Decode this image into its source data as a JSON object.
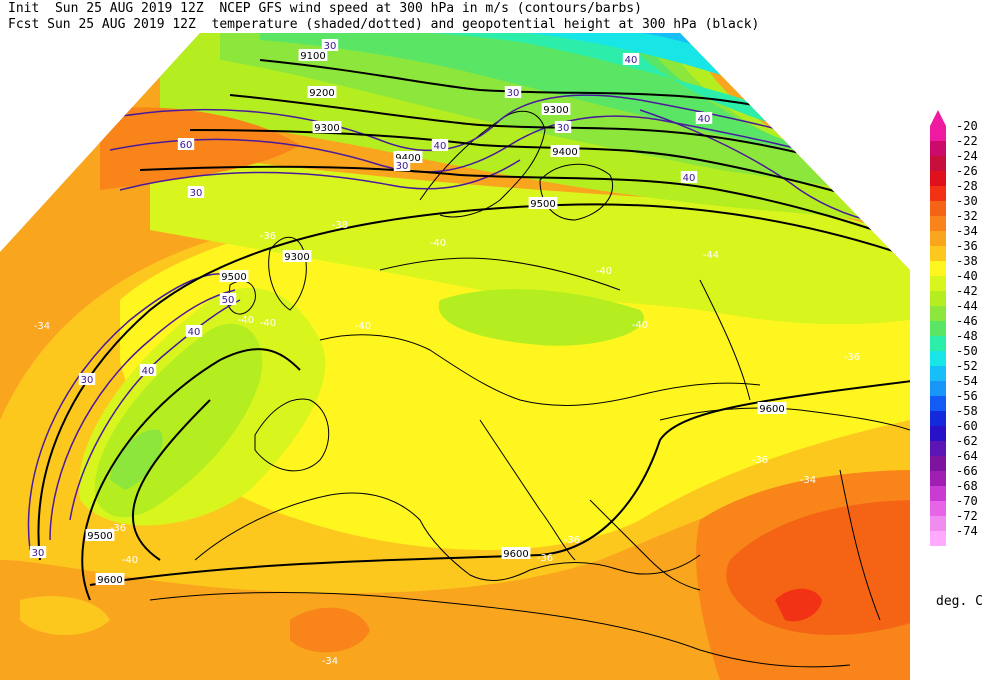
{
  "header": {
    "line1": "Init  Sun 25 AUG 2019 12Z  NCEP GFS wind speed at 300 hPa in m/s (contours/barbs)",
    "line2": "Fcst Sun 25 AUG 2019 12Z  temperature (shaded/dotted) and geopotential height at 300 hPa (black)"
  },
  "colorbar": {
    "unit": "deg. C",
    "levels": [
      {
        "label": "-20",
        "color": "#ee1aa0"
      },
      {
        "label": "-22",
        "color": "#cc0a6a"
      },
      {
        "label": "-24",
        "color": "#c80f3c"
      },
      {
        "label": "-26",
        "color": "#e0101e"
      },
      {
        "label": "-28",
        "color": "#f23214"
      },
      {
        "label": "-30",
        "color": "#f46414"
      },
      {
        "label": "-32",
        "color": "#f8841a"
      },
      {
        "label": "-34",
        "color": "#f9a51e"
      },
      {
        "label": "-36",
        "color": "#fdc81e"
      },
      {
        "label": "-38",
        "color": "#fef61e"
      },
      {
        "label": "-40",
        "color": "#d9f51e"
      },
      {
        "label": "-42",
        "color": "#b5ee20"
      },
      {
        "label": "-44",
        "color": "#8ce63c"
      },
      {
        "label": "-46",
        "color": "#5ae664"
      },
      {
        "label": "-48",
        "color": "#2ceeaa"
      },
      {
        "label": "-50",
        "color": "#18e6e6"
      },
      {
        "label": "-52",
        "color": "#18bef8"
      },
      {
        "label": "-54",
        "color": "#1896f8"
      },
      {
        "label": "-56",
        "color": "#145af4"
      },
      {
        "label": "-58",
        "color": "#1428dc"
      },
      {
        "label": "-60",
        "color": "#2812c8"
      },
      {
        "label": "-62",
        "color": "#5c14b4"
      },
      {
        "label": "-64",
        "color": "#7c14a0"
      },
      {
        "label": "-66",
        "color": "#a01eb4"
      },
      {
        "label": "-68",
        "color": "#c83cd2"
      },
      {
        "label": "-70",
        "color": "#e664e6"
      },
      {
        "label": "-72",
        "color": "#f08cf0"
      },
      {
        "label": "-74",
        "color": "#ffaaff"
      }
    ]
  },
  "map": {
    "height_labels": [
      "9100",
      "9200",
      "9300",
      "9300",
      "9400",
      "9400",
      "9500",
      "9300",
      "9500",
      "9500",
      "9600",
      "9600",
      "9600"
    ],
    "speed_labels": [
      "30",
      "30",
      "30",
      "30",
      "30",
      "30",
      "30",
      "40",
      "40",
      "40",
      "40",
      "40",
      "50",
      "60",
      "40"
    ],
    "temp_labels": [
      "-34",
      "-36",
      "-38",
      "-40",
      "-40",
      "-40",
      "-40",
      "-40",
      "-40",
      "-36",
      "-36",
      "-34",
      "-36",
      "-36",
      "-36",
      "-40",
      "-34",
      "-44"
    ]
  }
}
